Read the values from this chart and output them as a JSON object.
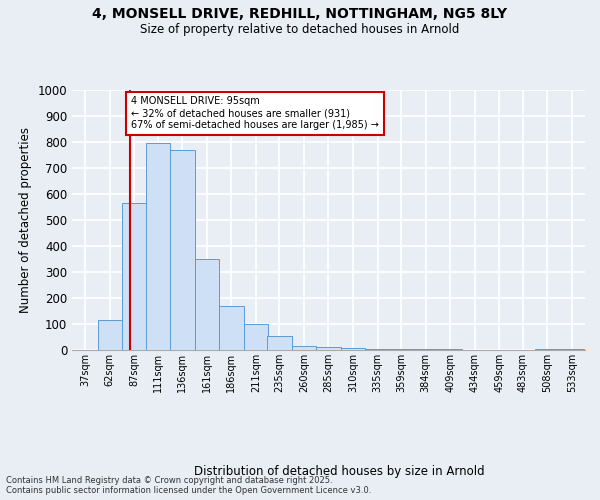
{
  "title_line1": "4, MONSELL DRIVE, REDHILL, NOTTINGHAM, NG5 8LY",
  "title_line2": "Size of property relative to detached houses in Arnold",
  "xlabel": "Distribution of detached houses by size in Arnold",
  "ylabel": "Number of detached properties",
  "footnote": "Contains HM Land Registry data © Crown copyright and database right 2025.\nContains public sector information licensed under the Open Government Licence v3.0.",
  "bins": [
    37,
    62,
    87,
    111,
    136,
    161,
    186,
    211,
    235,
    260,
    285,
    310,
    335,
    359,
    384,
    409,
    434,
    459,
    483,
    508,
    533
  ],
  "values": [
    0,
    115,
    565,
    795,
    770,
    350,
    170,
    100,
    55,
    15,
    12,
    8,
    5,
    3,
    2,
    2,
    1,
    1,
    1,
    2,
    2
  ],
  "bar_face_color": "#cde0f5",
  "bar_edge_color": "#5b9bd5",
  "red_line_x": 95,
  "annotation_title": "4 MONSELL DRIVE: 95sqm",
  "annotation_line1": "← 32% of detached houses are smaller (931)",
  "annotation_line2": "67% of semi-detached houses are larger (1,985) →",
  "annotation_box_color": "#ffffff",
  "annotation_border_color": "#cc0000",
  "ylim": [
    0,
    1000
  ],
  "yticks": [
    0,
    100,
    200,
    300,
    400,
    500,
    600,
    700,
    800,
    900,
    1000
  ],
  "background_color": "#e8eef4",
  "plot_background_color": "#e8eef4",
  "grid_color": "#ffffff"
}
